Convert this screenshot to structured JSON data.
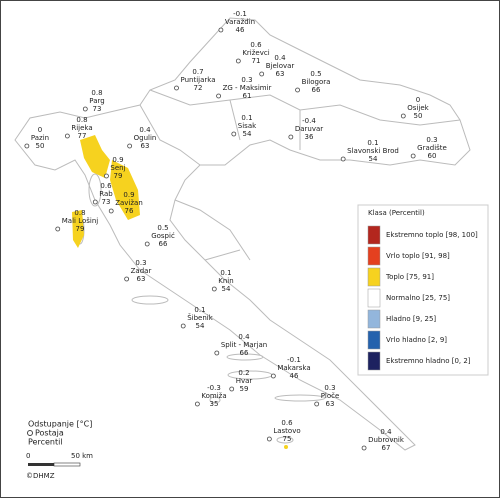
{
  "stations": [
    {
      "name": "Varaždin",
      "deviation": -0.1,
      "percentile": 46
    },
    {
      "name": "Križevci",
      "deviation": 0.6,
      "percentile": 71
    },
    {
      "name": "Bjelovar",
      "deviation": 0.4,
      "percentile": 63
    },
    {
      "name": "Puntijarka",
      "deviation": 0.7,
      "percentile": 72
    },
    {
      "name": "ZG - Maksimir",
      "deviation": 0.3,
      "percentile": 61
    },
    {
      "name": "Bilogora",
      "deviation": 0.5,
      "percentile": 66
    },
    {
      "name": "Parg",
      "deviation": 0.8,
      "percentile": 73
    },
    {
      "name": "Rijeka",
      "deviation": 0.8,
      "percentile": 77
    },
    {
      "name": "Pazin",
      "deviation": 0,
      "percentile": 50
    },
    {
      "name": "Ogulin",
      "deviation": 0.4,
      "percentile": 63
    },
    {
      "name": "Sisak",
      "deviation": 0.1,
      "percentile": 54
    },
    {
      "name": "Daruvar",
      "deviation": -0.4,
      "percentile": 36
    },
    {
      "name": "Osijek",
      "deviation": 0,
      "percentile": 50
    },
    {
      "name": "Slavonski Brod",
      "deviation": 0.1,
      "percentile": 54
    },
    {
      "name": "Gradište",
      "deviation": 0.3,
      "percentile": 60
    },
    {
      "name": "Senj",
      "deviation": 0.9,
      "percentile": 79
    },
    {
      "name": "Rab",
      "deviation": 0.6,
      "percentile": 73
    },
    {
      "name": "Zavižan",
      "deviation": 0.9,
      "percentile": 76
    },
    {
      "name": "Mali Lošinj",
      "deviation": 0.8,
      "percentile": 79
    },
    {
      "name": "Gospić",
      "deviation": 0.5,
      "percentile": 66
    },
    {
      "name": "Zadar",
      "deviation": 0.3,
      "percentile": 63
    },
    {
      "name": "Knin",
      "deviation": 0.1,
      "percentile": 54
    },
    {
      "name": "Šibenik",
      "deviation": 0.1,
      "percentile": 54
    },
    {
      "name": "Split - Marjan",
      "deviation": 0.4,
      "percentile": 66
    },
    {
      "name": "Makarska",
      "deviation": -0.1,
      "percentile": 46
    },
    {
      "name": "Hvar",
      "deviation": 0.2,
      "percentile": 59
    },
    {
      "name": "Komiža",
      "deviation": -0.3,
      "percentile": 35
    },
    {
      "name": "Ploče",
      "deviation": 0.3,
      "percentile": 63
    },
    {
      "name": "Lastovo",
      "deviation": 0.6,
      "percentile": 75
    },
    {
      "name": "Dubrovnik",
      "deviation": 0.4,
      "percentile": 67
    }
  ],
  "legend": {
    "title": "Klasa (Percentil)",
    "classes": [
      {
        "label": "Ekstremno toplo [98, 100]",
        "color": "#b3261e"
      },
      {
        "label": "Vrlo toplo [91, 98]",
        "color": "#e4401f"
      },
      {
        "label": "Toplo [75, 91]",
        "color": "#f6d21f"
      },
      {
        "label": "Normalno [25, 75]",
        "color": "#ffffff"
      },
      {
        "label": "Hladno [9, 25]",
        "color": "#93b6dc"
      },
      {
        "label": "Vrlo hladno [2, 9]",
        "color": "#2462ad"
      },
      {
        "label": "Ekstremno hladno [0, 2]",
        "color": "#1d2260"
      }
    ]
  },
  "key": {
    "deviation_label": "Odstupanje [°C]",
    "station_label": "Postaja",
    "percentile_label": "Percentil"
  },
  "scale": {
    "start": 0,
    "end": "50 km"
  },
  "copyright": "©DHMZ"
}
